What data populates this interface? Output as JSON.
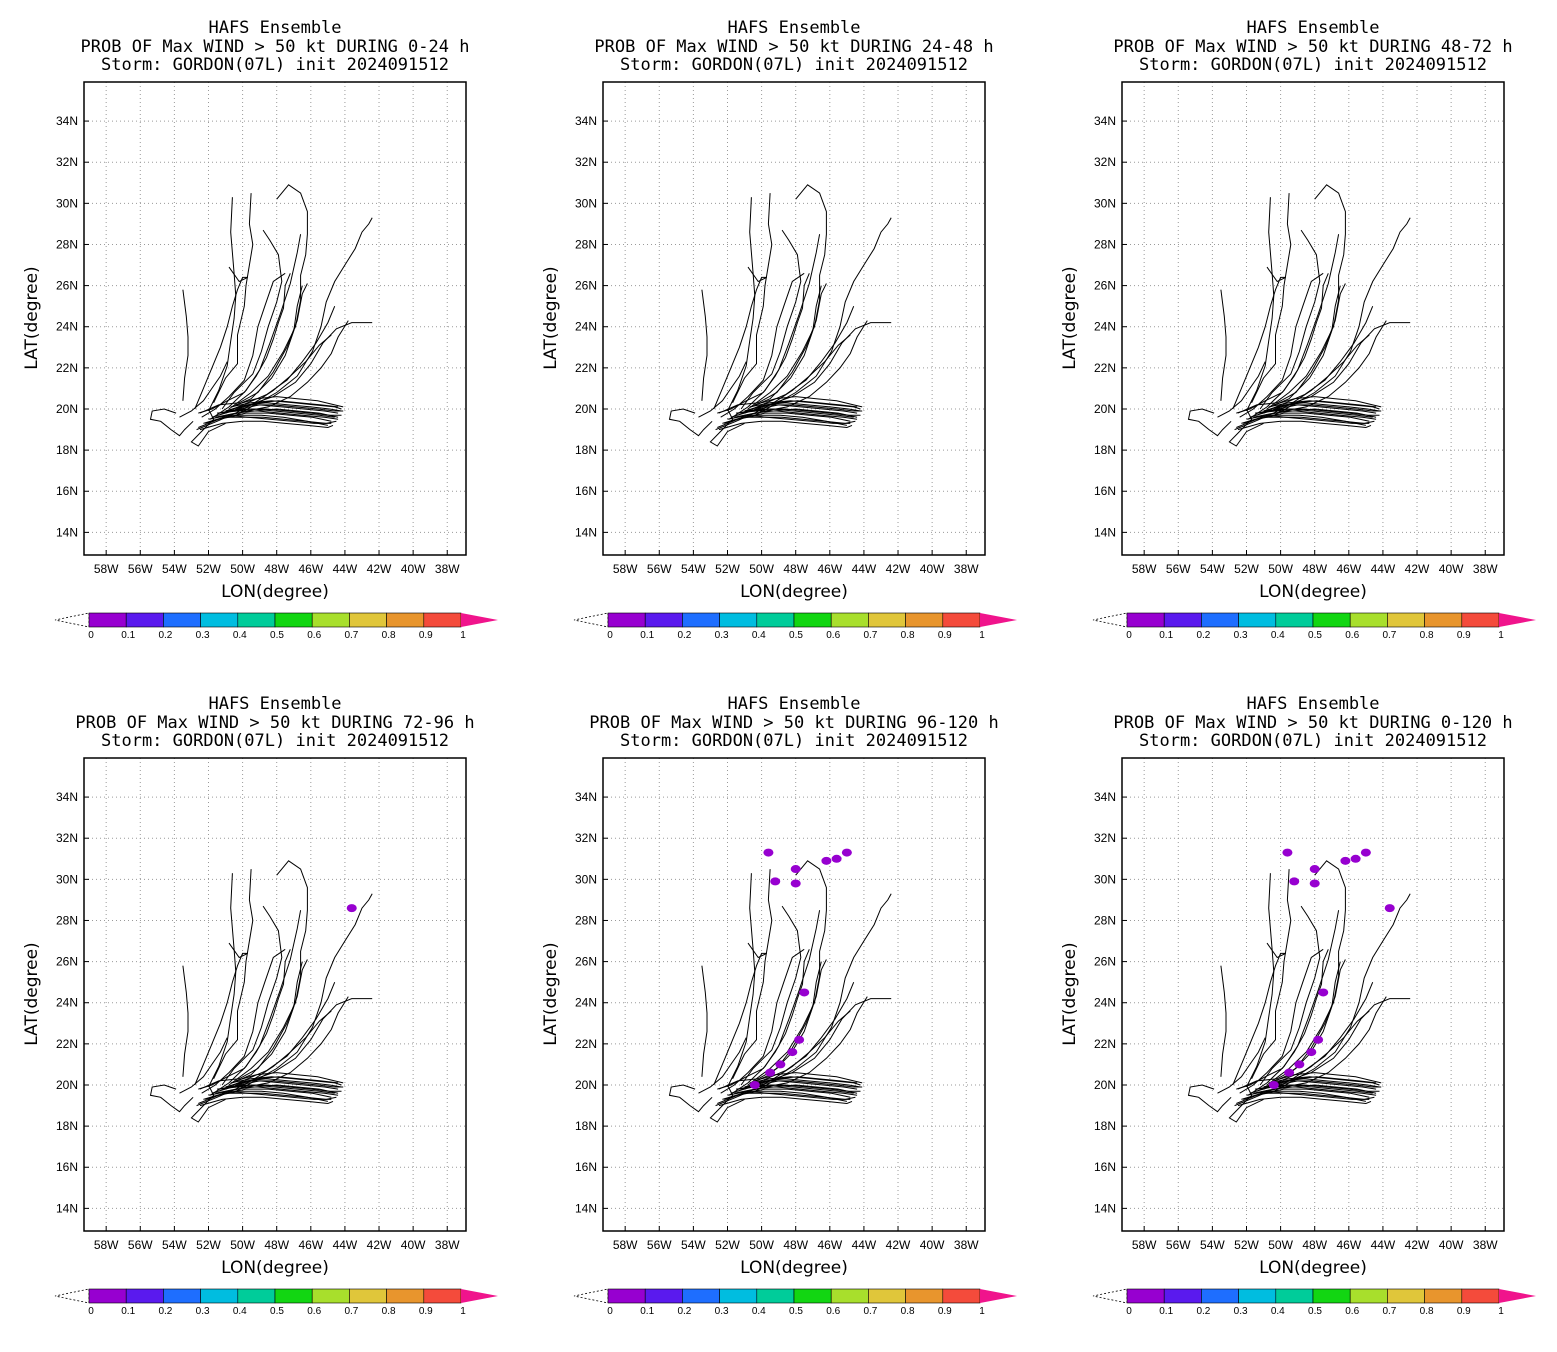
{
  "panels": [
    {
      "title": "HAFS Ensemble",
      "subtitle": "PROB OF Max WIND > 50 kt DURING  0-24 h",
      "storm": "Storm: GORDON(07L) init 2024091512",
      "blobs": []
    },
    {
      "title": "HAFS Ensemble",
      "subtitle": "PROB OF Max WIND > 50 kt DURING 24-48 h",
      "storm": "Storm: GORDON(07L) init 2024091512",
      "blobs": []
    },
    {
      "title": "HAFS Ensemble",
      "subtitle": "PROB OF Max WIND > 50 kt DURING 48-72 h",
      "storm": "Storm: GORDON(07L) init 2024091512",
      "blobs": []
    },
    {
      "title": "HAFS Ensemble",
      "subtitle": "PROB OF Max WIND > 50 kt DURING 72-96 h",
      "storm": "Storm: GORDON(07L) init 2024091512",
      "blobs": [
        [
          -43.6,
          28.6
        ]
      ]
    },
    {
      "title": "HAFS Ensemble",
      "subtitle": "PROB OF Max WIND > 50 kt DURING 96-120 h",
      "storm": "Storm: GORDON(07L) init 2024091512",
      "blobs": [
        [
          -45.0,
          31.3
        ],
        [
          -45.6,
          31.0
        ],
        [
          -46.2,
          30.9
        ],
        [
          -48.0,
          29.8
        ],
        [
          -49.2,
          29.9
        ],
        [
          -49.6,
          31.3
        ],
        [
          -48.0,
          30.5
        ],
        [
          -47.5,
          24.5
        ],
        [
          -47.8,
          22.2
        ],
        [
          -48.2,
          21.6
        ],
        [
          -48.9,
          21.0
        ],
        [
          -49.5,
          20.6
        ],
        [
          -50.4,
          20.0
        ]
      ]
    },
    {
      "title": "HAFS Ensemble",
      "subtitle": "PROB OF Max WIND > 50 kt DURING 0-120 h",
      "storm": "Storm: GORDON(07L) init 2024091512",
      "blobs": [
        [
          -43.6,
          28.6
        ],
        [
          -45.0,
          31.3
        ],
        [
          -45.6,
          31.0
        ],
        [
          -46.2,
          30.9
        ],
        [
          -48.0,
          29.8
        ],
        [
          -49.2,
          29.9
        ],
        [
          -49.6,
          31.3
        ],
        [
          -48.0,
          30.5
        ],
        [
          -47.5,
          24.5
        ],
        [
          -47.8,
          22.2
        ],
        [
          -48.2,
          21.6
        ],
        [
          -48.9,
          21.0
        ],
        [
          -49.5,
          20.6
        ],
        [
          -50.4,
          20.0
        ]
      ]
    }
  ],
  "axes": {
    "xlabel": "LON(degree)",
    "ylabel": "LAT(degree)",
    "lon_range": [
      -59.3,
      -36.9
    ],
    "lat_range": [
      12.9,
      35.9
    ],
    "lon_ticks": [
      "58W",
      "56W",
      "54W",
      "52W",
      "50W",
      "48W",
      "46W",
      "44W",
      "42W",
      "40W",
      "38W"
    ],
    "lat_ticks": [
      "14N",
      "16N",
      "18N",
      "20N",
      "22N",
      "24N",
      "26N",
      "28N",
      "30N",
      "32N",
      "34N"
    ],
    "grid": true
  },
  "colorbar": {
    "labels": [
      "0",
      "0.1",
      "0.2",
      "0.3",
      "0.4",
      "0.5",
      "0.6",
      "0.7",
      "0.8",
      "0.9",
      "1"
    ],
    "colors": [
      "#9700d0",
      "#5a1aee",
      "#1e6eff",
      "#00bde0",
      "#00cc9a",
      "#12d612",
      "#a8df2c",
      "#e0c63a",
      "#e8952d",
      "#f44b3b"
    ],
    "overflow_color": "#f0148c"
  },
  "tracks": [
    [
      [
        -52.6,
        19.8
      ],
      [
        -51.8,
        20.0
      ],
      [
        -50.9,
        20.4
      ],
      [
        -49.9,
        20.8
      ],
      [
        -49.2,
        21.6
      ],
      [
        -48.6,
        22.5
      ],
      [
        -48.2,
        23.4
      ],
      [
        -47.9,
        24.2
      ],
      [
        -47.6,
        24.9
      ],
      [
        -47.5,
        26.0
      ],
      [
        -47.2,
        26.6
      ]
    ],
    [
      [
        -52.4,
        19.6
      ],
      [
        -51.6,
        20.0
      ],
      [
        -50.8,
        20.6
      ],
      [
        -49.9,
        21.4
      ],
      [
        -49.4,
        22.6
      ],
      [
        -49.1,
        24.0
      ],
      [
        -48.7,
        25.0
      ],
      [
        -48.2,
        26.2
      ],
      [
        -47.5,
        26.6
      ]
    ],
    [
      [
        -52.5,
        19.8
      ],
      [
        -51.4,
        20.2
      ],
      [
        -50.2,
        20.3
      ],
      [
        -49.1,
        20.8
      ],
      [
        -48.2,
        21.8
      ],
      [
        -47.4,
        23.0
      ],
      [
        -46.8,
        24.3
      ],
      [
        -46.5,
        25.6
      ],
      [
        -46.2,
        26.1
      ]
    ],
    [
      [
        -52.8,
        20.0
      ],
      [
        -52.3,
        21.0
      ],
      [
        -51.8,
        22.0
      ],
      [
        -51.3,
        23.0
      ],
      [
        -50.9,
        24.0
      ],
      [
        -50.6,
        25.0
      ],
      [
        -50.3,
        25.8
      ],
      [
        -50.0,
        26.4
      ],
      [
        -49.7,
        26.4
      ],
      [
        -50.2,
        26.2
      ],
      [
        -50.8,
        26.9
      ]
    ],
    [
      [
        -53.5,
        20.4
      ],
      [
        -53.4,
        21.5
      ],
      [
        -53.2,
        22.6
      ],
      [
        -53.2,
        23.5
      ],
      [
        -53.3,
        24.5
      ],
      [
        -53.5,
        25.8
      ]
    ],
    [
      [
        -51.7,
        20.3
      ],
      [
        -51.0,
        21.5
      ],
      [
        -50.3,
        22.2
      ],
      [
        -50.3,
        23.6
      ],
      [
        -49.9,
        25.0
      ],
      [
        -49.8,
        26.0
      ],
      [
        -49.6,
        27.0
      ],
      [
        -49.4,
        28.0
      ],
      [
        -49.6,
        29.0
      ],
      [
        -49.5,
        30.5
      ]
    ],
    [
      [
        -51.2,
        20.0
      ],
      [
        -50.5,
        20.8
      ],
      [
        -49.4,
        21.7
      ],
      [
        -48.9,
        22.8
      ],
      [
        -48.5,
        24.0
      ],
      [
        -48.0,
        25.2
      ],
      [
        -47.7,
        26.2
      ],
      [
        -47.9,
        27.5
      ],
      [
        -48.4,
        28.2
      ],
      [
        -48.8,
        28.7
      ]
    ],
    [
      [
        -50.8,
        20.0
      ],
      [
        -49.5,
        20.8
      ],
      [
        -48.5,
        21.6
      ],
      [
        -47.6,
        22.8
      ],
      [
        -46.9,
        24.0
      ],
      [
        -46.6,
        25.3
      ],
      [
        -46.6,
        26.5
      ],
      [
        -46.3,
        27.5
      ],
      [
        -46.2,
        28.5
      ],
      [
        -46.2,
        29.6
      ],
      [
        -46.6,
        30.5
      ],
      [
        -47.3,
        30.9
      ],
      [
        -48.0,
        30.2
      ]
    ],
    [
      [
        -50.6,
        19.6
      ],
      [
        -49.5,
        20.1
      ],
      [
        -48.0,
        20.8
      ],
      [
        -46.8,
        21.6
      ],
      [
        -45.9,
        22.8
      ],
      [
        -45.4,
        24.0
      ],
      [
        -45.1,
        25.2
      ],
      [
        -44.6,
        26.2
      ],
      [
        -44.0,
        27.0
      ],
      [
        -43.4,
        27.8
      ],
      [
        -43.0,
        28.6
      ],
      [
        -42.6,
        29.0
      ],
      [
        -42.4,
        29.3
      ]
    ],
    [
      [
        -51.0,
        19.8
      ],
      [
        -49.6,
        20.2
      ],
      [
        -48.2,
        20.6
      ],
      [
        -46.9,
        21.3
      ],
      [
        -46.0,
        22.2
      ],
      [
        -45.3,
        23.2
      ],
      [
        -44.5,
        23.9
      ],
      [
        -43.6,
        24.2
      ],
      [
        -42.4,
        24.2
      ]
    ],
    [
      [
        -51.4,
        19.7
      ],
      [
        -50.0,
        20.2
      ],
      [
        -48.6,
        20.7
      ],
      [
        -47.4,
        21.4
      ],
      [
        -46.5,
        22.3
      ],
      [
        -45.7,
        23.2
      ],
      [
        -45.0,
        24.2
      ],
      [
        -44.6,
        25.0
      ]
    ],
    [
      [
        -51.2,
        19.6
      ],
      [
        -49.8,
        19.9
      ],
      [
        -48.5,
        20.1
      ],
      [
        -47.2,
        20.6
      ],
      [
        -46.2,
        21.3
      ],
      [
        -45.4,
        22.0
      ],
      [
        -44.8,
        22.7
      ],
      [
        -44.4,
        23.5
      ],
      [
        -43.8,
        24.3
      ]
    ],
    [
      [
        -50.6,
        20.1
      ],
      [
        -49.5,
        20.5
      ],
      [
        -48.3,
        21.5
      ],
      [
        -47.5,
        22.6
      ],
      [
        -47.0,
        23.8
      ],
      [
        -46.8,
        25.0
      ],
      [
        -46.5,
        26.0
      ]
    ],
    [
      [
        -51.9,
        19.5
      ],
      [
        -50.8,
        20.1
      ],
      [
        -49.8,
        20.9
      ],
      [
        -49.0,
        21.9
      ],
      [
        -48.4,
        23.2
      ],
      [
        -47.8,
        24.6
      ],
      [
        -47.2,
        26.1
      ],
      [
        -46.8,
        27.6
      ],
      [
        -46.6,
        28.5
      ]
    ],
    [
      [
        -52.0,
        19.9
      ],
      [
        -51.4,
        20.9
      ],
      [
        -50.9,
        22.1
      ],
      [
        -50.7,
        23.3
      ],
      [
        -50.5,
        24.4
      ],
      [
        -50.4,
        25.5
      ],
      [
        -50.5,
        26.6
      ],
      [
        -50.6,
        27.6
      ],
      [
        -50.7,
        28.6
      ],
      [
        -50.6,
        30.3
      ]
    ],
    [
      [
        -52.7,
        19.0
      ],
      [
        -51.5,
        19.4
      ],
      [
        -50.4,
        19.8
      ],
      [
        -49.3,
        20.3
      ],
      [
        -48.2,
        20.9
      ],
      [
        -47.2,
        21.6
      ],
      [
        -46.3,
        22.3
      ],
      [
        -45.5,
        23.1
      ],
      [
        -44.8,
        23.6
      ]
    ],
    [
      [
        -53.7,
        19.6
      ],
      [
        -53.0,
        19.9
      ],
      [
        -52.3,
        20.4
      ],
      [
        -51.8,
        21.0
      ],
      [
        -51.3,
        21.6
      ],
      [
        -50.9,
        22.3
      ]
    ],
    [
      [
        -52.9,
        19.4
      ],
      [
        -53.4,
        19.0
      ],
      [
        -53.7,
        18.7
      ],
      [
        -54.2,
        19.0
      ],
      [
        -54.8,
        19.4
      ],
      [
        -55.4,
        19.5
      ],
      [
        -55.3,
        19.9
      ],
      [
        -54.6,
        20.0
      ],
      [
        -53.9,
        19.8
      ]
    ],
    [
      [
        -52.0,
        20.0
      ],
      [
        -51.7,
        19.5
      ],
      [
        -52.3,
        19.0
      ],
      [
        -53.0,
        18.4
      ],
      [
        -52.6,
        18.2
      ],
      [
        -52.0,
        18.9
      ],
      [
        -51.0,
        19.3
      ]
    ],
    [
      [
        -52.6,
        19.1
      ],
      [
        -51.4,
        19.5
      ],
      [
        -50.2,
        19.7
      ],
      [
        -48.9,
        19.7
      ],
      [
        -47.6,
        19.6
      ],
      [
        -46.2,
        19.4
      ],
      [
        -45.0,
        19.2
      ]
    ],
    [
      [
        -52.2,
        19.3
      ],
      [
        -51.0,
        19.6
      ],
      [
        -49.8,
        19.8
      ],
      [
        -48.5,
        19.8
      ],
      [
        -47.2,
        19.7
      ],
      [
        -45.9,
        19.6
      ],
      [
        -44.8,
        19.4
      ]
    ],
    [
      [
        -51.8,
        19.6
      ],
      [
        -50.6,
        19.9
      ],
      [
        -49.4,
        20.0
      ],
      [
        -48.1,
        19.9
      ],
      [
        -46.8,
        19.8
      ],
      [
        -45.5,
        19.7
      ],
      [
        -44.6,
        19.6
      ]
    ],
    [
      [
        -51.4,
        19.8
      ],
      [
        -50.2,
        20.0
      ],
      [
        -49.0,
        20.2
      ],
      [
        -47.7,
        20.1
      ],
      [
        -46.4,
        20.0
      ],
      [
        -45.2,
        19.9
      ],
      [
        -44.4,
        19.8
      ]
    ],
    [
      [
        -51.0,
        19.9
      ],
      [
        -49.8,
        20.2
      ],
      [
        -48.6,
        20.3
      ],
      [
        -47.3,
        20.2
      ],
      [
        -46.0,
        20.1
      ],
      [
        -44.9,
        20.0
      ],
      [
        -44.2,
        19.9
      ]
    ],
    [
      [
        -50.7,
        20.1
      ],
      [
        -49.5,
        20.3
      ],
      [
        -48.3,
        20.4
      ],
      [
        -47.0,
        20.3
      ],
      [
        -45.8,
        20.2
      ],
      [
        -44.6,
        20.1
      ],
      [
        -44.2,
        20.0
      ]
    ],
    [
      [
        -50.4,
        20.2
      ],
      [
        -49.2,
        20.5
      ],
      [
        -48.0,
        20.6
      ],
      [
        -46.8,
        20.5
      ],
      [
        -45.6,
        20.4
      ],
      [
        -44.6,
        20.2
      ],
      [
        -44.1,
        20.1
      ]
    ],
    [
      [
        -52.5,
        19.0
      ],
      [
        -51.2,
        19.3
      ],
      [
        -50.0,
        19.4
      ],
      [
        -48.8,
        19.4
      ],
      [
        -47.5,
        19.3
      ],
      [
        -46.2,
        19.2
      ],
      [
        -45.0,
        19.1
      ],
      [
        -44.7,
        19.2
      ]
    ],
    [
      [
        -52.0,
        19.5
      ],
      [
        -50.8,
        19.7
      ],
      [
        -49.7,
        19.6
      ],
      [
        -48.4,
        19.5
      ],
      [
        -47.1,
        19.4
      ],
      [
        -45.8,
        19.3
      ],
      [
        -44.8,
        19.3
      ]
    ],
    [
      [
        -51.5,
        19.8
      ],
      [
        -50.3,
        19.9
      ],
      [
        -49.1,
        19.9
      ],
      [
        -47.8,
        19.8
      ],
      [
        -46.5,
        19.7
      ],
      [
        -45.2,
        19.6
      ],
      [
        -44.4,
        19.5
      ]
    ],
    [
      [
        -51.0,
        19.9
      ],
      [
        -49.8,
        20.0
      ],
      [
        -48.6,
        20.0
      ],
      [
        -47.3,
        19.9
      ],
      [
        -46.0,
        19.8
      ],
      [
        -44.9,
        19.7
      ],
      [
        -44.2,
        19.7
      ]
    ],
    [
      [
        -50.6,
        20.0
      ],
      [
        -49.4,
        20.2
      ],
      [
        -48.2,
        20.2
      ],
      [
        -46.9,
        20.1
      ],
      [
        -45.6,
        20.0
      ],
      [
        -44.6,
        19.9
      ],
      [
        -44.1,
        19.9
      ]
    ],
    [
      [
        -50.2,
        20.1
      ],
      [
        -49.0,
        20.3
      ],
      [
        -47.9,
        20.4
      ],
      [
        -46.7,
        20.3
      ],
      [
        -45.4,
        20.2
      ],
      [
        -44.4,
        20.1
      ]
    ],
    [
      [
        -51.6,
        19.6
      ],
      [
        -50.4,
        19.8
      ],
      [
        -49.3,
        19.9
      ],
      [
        -48.0,
        20.0
      ],
      [
        -46.8,
        19.9
      ],
      [
        -45.5,
        19.8
      ],
      [
        -44.4,
        19.6
      ]
    ],
    [
      [
        -52.3,
        19.3
      ],
      [
        -51.1,
        19.6
      ],
      [
        -50.1,
        19.6
      ],
      [
        -48.8,
        19.6
      ],
      [
        -47.6,
        19.5
      ],
      [
        -46.3,
        19.4
      ],
      [
        -45.1,
        19.3
      ],
      [
        -44.5,
        19.4
      ]
    ]
  ]
}
